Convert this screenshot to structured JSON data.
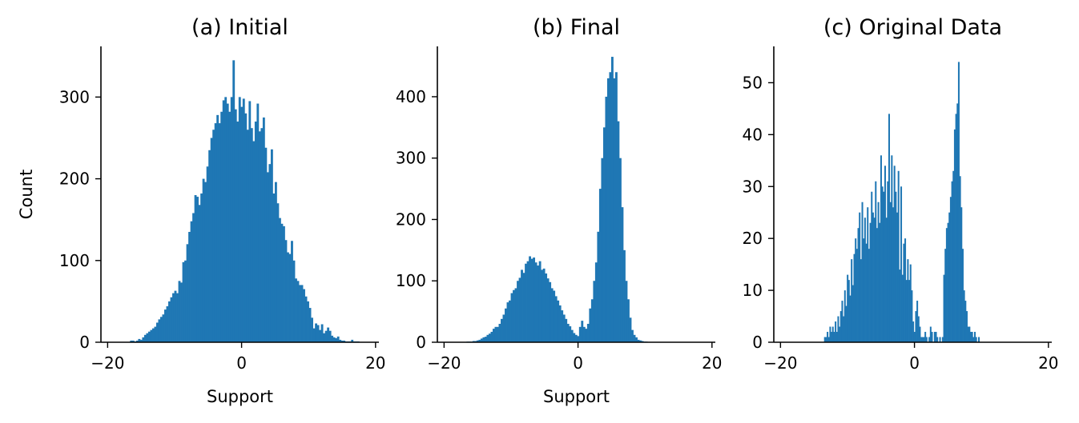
{
  "chart_data": [
    {
      "type": "bar",
      "title": "(a) Initial",
      "xlabel": "Support",
      "ylabel": "Count",
      "xlim": [
        -21,
        20.5
      ],
      "ylim": [
        0,
        362
      ],
      "xticks": [
        -20,
        0,
        20
      ],
      "yticks": [
        0,
        100,
        200,
        300
      ],
      "color": "#1f77b4",
      "bin_width": 0.3,
      "x": [
        -16.5,
        -16.2,
        -15.9,
        -15.6,
        -15.3,
        -15.0,
        -14.7,
        -14.4,
        -14.1,
        -13.8,
        -13.5,
        -13.2,
        -12.9,
        -12.6,
        -12.3,
        -12.0,
        -11.7,
        -11.4,
        -11.1,
        -10.8,
        -10.5,
        -10.2,
        -9.9,
        -9.6,
        -9.3,
        -9.0,
        -8.7,
        -8.4,
        -8.1,
        -7.8,
        -7.5,
        -7.2,
        -6.9,
        -6.6,
        -6.3,
        -6.0,
        -5.7,
        -5.4,
        -5.1,
        -4.8,
        -4.5,
        -4.2,
        -3.9,
        -3.6,
        -3.3,
        -3.0,
        -2.7,
        -2.4,
        -2.1,
        -1.8,
        -1.5,
        -1.2,
        -0.9,
        -0.6,
        -0.3,
        0.0,
        0.3,
        0.6,
        0.9,
        1.2,
        1.5,
        1.8,
        2.1,
        2.4,
        2.7,
        3.0,
        3.3,
        3.6,
        3.9,
        4.2,
        4.5,
        4.8,
        5.1,
        5.4,
        5.7,
        6.0,
        6.3,
        6.6,
        6.9,
        7.2,
        7.5,
        7.8,
        8.1,
        8.4,
        8.7,
        9.0,
        9.3,
        9.6,
        9.9,
        10.2,
        10.5,
        10.8,
        11.1,
        11.4,
        11.7,
        12.0,
        12.3,
        12.6,
        12.9,
        13.2,
        13.5,
        13.8,
        14.1,
        14.4,
        14.7,
        15.0,
        15.3,
        15.6,
        15.9,
        16.2,
        16.5,
        16.8,
        17.1,
        17.4
      ],
      "values": [
        2,
        2,
        1,
        2,
        4,
        3,
        6,
        9,
        11,
        13,
        15,
        17,
        19,
        24,
        28,
        31,
        34,
        40,
        44,
        50,
        55,
        60,
        63,
        60,
        75,
        73,
        98,
        100,
        120,
        135,
        148,
        158,
        180,
        178,
        168,
        182,
        200,
        196,
        215,
        235,
        250,
        260,
        268,
        278,
        268,
        282,
        296,
        300,
        292,
        282,
        300,
        345,
        285,
        270,
        300,
        288,
        298,
        280,
        260,
        295,
        262,
        246,
        270,
        292,
        258,
        262,
        275,
        238,
        208,
        218,
        236,
        182,
        196,
        170,
        152,
        145,
        142,
        125,
        110,
        108,
        124,
        100,
        78,
        75,
        70,
        70,
        65,
        56,
        50,
        42,
        30,
        17,
        23,
        21,
        15,
        22,
        11,
        14,
        18,
        14,
        8,
        6,
        5,
        7,
        3,
        2,
        2,
        1,
        1,
        1,
        3,
        1,
        1,
        1
      ]
    },
    {
      "type": "bar",
      "title": "(b) Final",
      "xlabel": "Support",
      "ylabel": "",
      "xlim": [
        -21,
        20.5
      ],
      "ylim": [
        0,
        482
      ],
      "xticks": [
        -20,
        0,
        20
      ],
      "yticks": [
        0,
        100,
        200,
        300,
        400
      ],
      "color": "#1f77b4",
      "bin_width": 0.3,
      "x": [
        -16.5,
        -16.2,
        -15.9,
        -15.6,
        -15.3,
        -15.0,
        -14.7,
        -14.4,
        -14.1,
        -13.8,
        -13.5,
        -13.2,
        -12.9,
        -12.6,
        -12.3,
        -12.0,
        -11.7,
        -11.4,
        -11.1,
        -10.8,
        -10.5,
        -10.2,
        -9.9,
        -9.6,
        -9.3,
        -9.0,
        -8.7,
        -8.4,
        -8.1,
        -7.8,
        -7.5,
        -7.2,
        -6.9,
        -6.6,
        -6.3,
        -6.0,
        -5.7,
        -5.4,
        -5.1,
        -4.8,
        -4.5,
        -4.2,
        -3.9,
        -3.6,
        -3.3,
        -3.0,
        -2.7,
        -2.4,
        -2.1,
        -1.8,
        -1.5,
        -1.2,
        -0.9,
        -0.6,
        -0.3,
        0.0,
        0.3,
        0.6,
        0.9,
        1.2,
        1.5,
        1.8,
        2.1,
        2.4,
        2.7,
        3.0,
        3.3,
        3.6,
        3.9,
        4.2,
        4.5,
        4.8,
        5.1,
        5.4,
        5.7,
        6.0,
        6.3,
        6.6,
        6.9,
        7.2,
        7.5,
        7.8,
        8.1,
        8.4,
        8.7,
        9.0,
        9.3,
        9.6,
        9.9,
        10.2
      ],
      "values": [
        1,
        1,
        1,
        2,
        2,
        3,
        4,
        6,
        8,
        9,
        12,
        14,
        17,
        22,
        25,
        25,
        30,
        38,
        45,
        55,
        65,
        68,
        80,
        85,
        88,
        100,
        105,
        118,
        113,
        128,
        132,
        140,
        136,
        138,
        130,
        125,
        132,
        118,
        120,
        112,
        104,
        98,
        88,
        84,
        75,
        68,
        60,
        52,
        45,
        38,
        30,
        26,
        20,
        15,
        12,
        10,
        25,
        35,
        25,
        22,
        30,
        55,
        70,
        100,
        130,
        180,
        250,
        300,
        350,
        400,
        430,
        440,
        465,
        430,
        440,
        360,
        300,
        220,
        150,
        100,
        70,
        40,
        20,
        12,
        8,
        4,
        3,
        2,
        1,
        1
      ]
    },
    {
      "type": "bar",
      "title": "(c) Original Data",
      "xlabel": "",
      "ylabel": "",
      "xlim": [
        -21,
        20.5
      ],
      "ylim": [
        0,
        57
      ],
      "xticks": [
        -20,
        0,
        20
      ],
      "yticks": [
        0,
        10,
        20,
        30,
        40,
        50
      ],
      "color": "#1f77b4",
      "bin_width": 0.2,
      "x": [
        -13.4,
        -13.2,
        -13.0,
        -12.8,
        -12.6,
        -12.4,
        -12.2,
        -12.0,
        -11.8,
        -11.6,
        -11.4,
        -11.2,
        -11.0,
        -10.8,
        -10.6,
        -10.4,
        -10.2,
        -10.0,
        -9.8,
        -9.6,
        -9.4,
        -9.2,
        -9.0,
        -8.8,
        -8.6,
        -8.4,
        -8.2,
        -8.0,
        -7.8,
        -7.6,
        -7.4,
        -7.2,
        -7.0,
        -6.8,
        -6.6,
        -6.4,
        -6.2,
        -6.0,
        -5.8,
        -5.6,
        -5.4,
        -5.2,
        -5.0,
        -4.8,
        -4.6,
        -4.4,
        -4.2,
        -4.0,
        -3.8,
        -3.6,
        -3.4,
        -3.2,
        -3.0,
        -2.8,
        -2.6,
        -2.4,
        -2.2,
        -2.0,
        -1.8,
        -1.6,
        -1.4,
        -1.2,
        -1.0,
        -0.8,
        -0.6,
        -0.4,
        -0.2,
        0.0,
        0.2,
        0.4,
        0.6,
        0.8,
        1.0,
        1.2,
        1.4,
        1.6,
        1.8,
        2.0,
        2.2,
        2.4,
        2.6,
        2.8,
        3.0,
        3.2,
        3.4,
        3.6,
        3.8,
        4.0,
        4.2,
        4.4,
        4.6,
        4.8,
        5.0,
        5.2,
        5.4,
        5.6,
        5.8,
        6.0,
        6.2,
        6.4,
        6.6,
        6.8,
        7.0,
        7.2,
        7.4,
        7.6,
        7.8,
        8.0,
        8.2,
        8.4,
        8.6,
        8.8,
        9.0,
        9.2,
        9.4,
        9.6
      ],
      "values": [
        1,
        1,
        2,
        1,
        3,
        2,
        3,
        2,
        4,
        2,
        5,
        3,
        6,
        8,
        5,
        10,
        7,
        13,
        12,
        9,
        16,
        11,
        17,
        20,
        18,
        22,
        25,
        16,
        27,
        20,
        24,
        19,
        26,
        18,
        23,
        29,
        25,
        24,
        31,
        22,
        27,
        23,
        36,
        30,
        29,
        34,
        24,
        31,
        44,
        27,
        36,
        26,
        34,
        29,
        25,
        33,
        14,
        30,
        13,
        19,
        20,
        12,
        16,
        12,
        15,
        10,
        4,
        2,
        6,
        8,
        5,
        3,
        1,
        1,
        1,
        2,
        1,
        0,
        1,
        3,
        2,
        0,
        2,
        2,
        1,
        0,
        1,
        0,
        1,
        13,
        18,
        22,
        23,
        25,
        28,
        31,
        33,
        41,
        44,
        46,
        54,
        32,
        26,
        18,
        10,
        8,
        6,
        3,
        3,
        2,
        2,
        1,
        2,
        1,
        0,
        1
      ]
    }
  ]
}
